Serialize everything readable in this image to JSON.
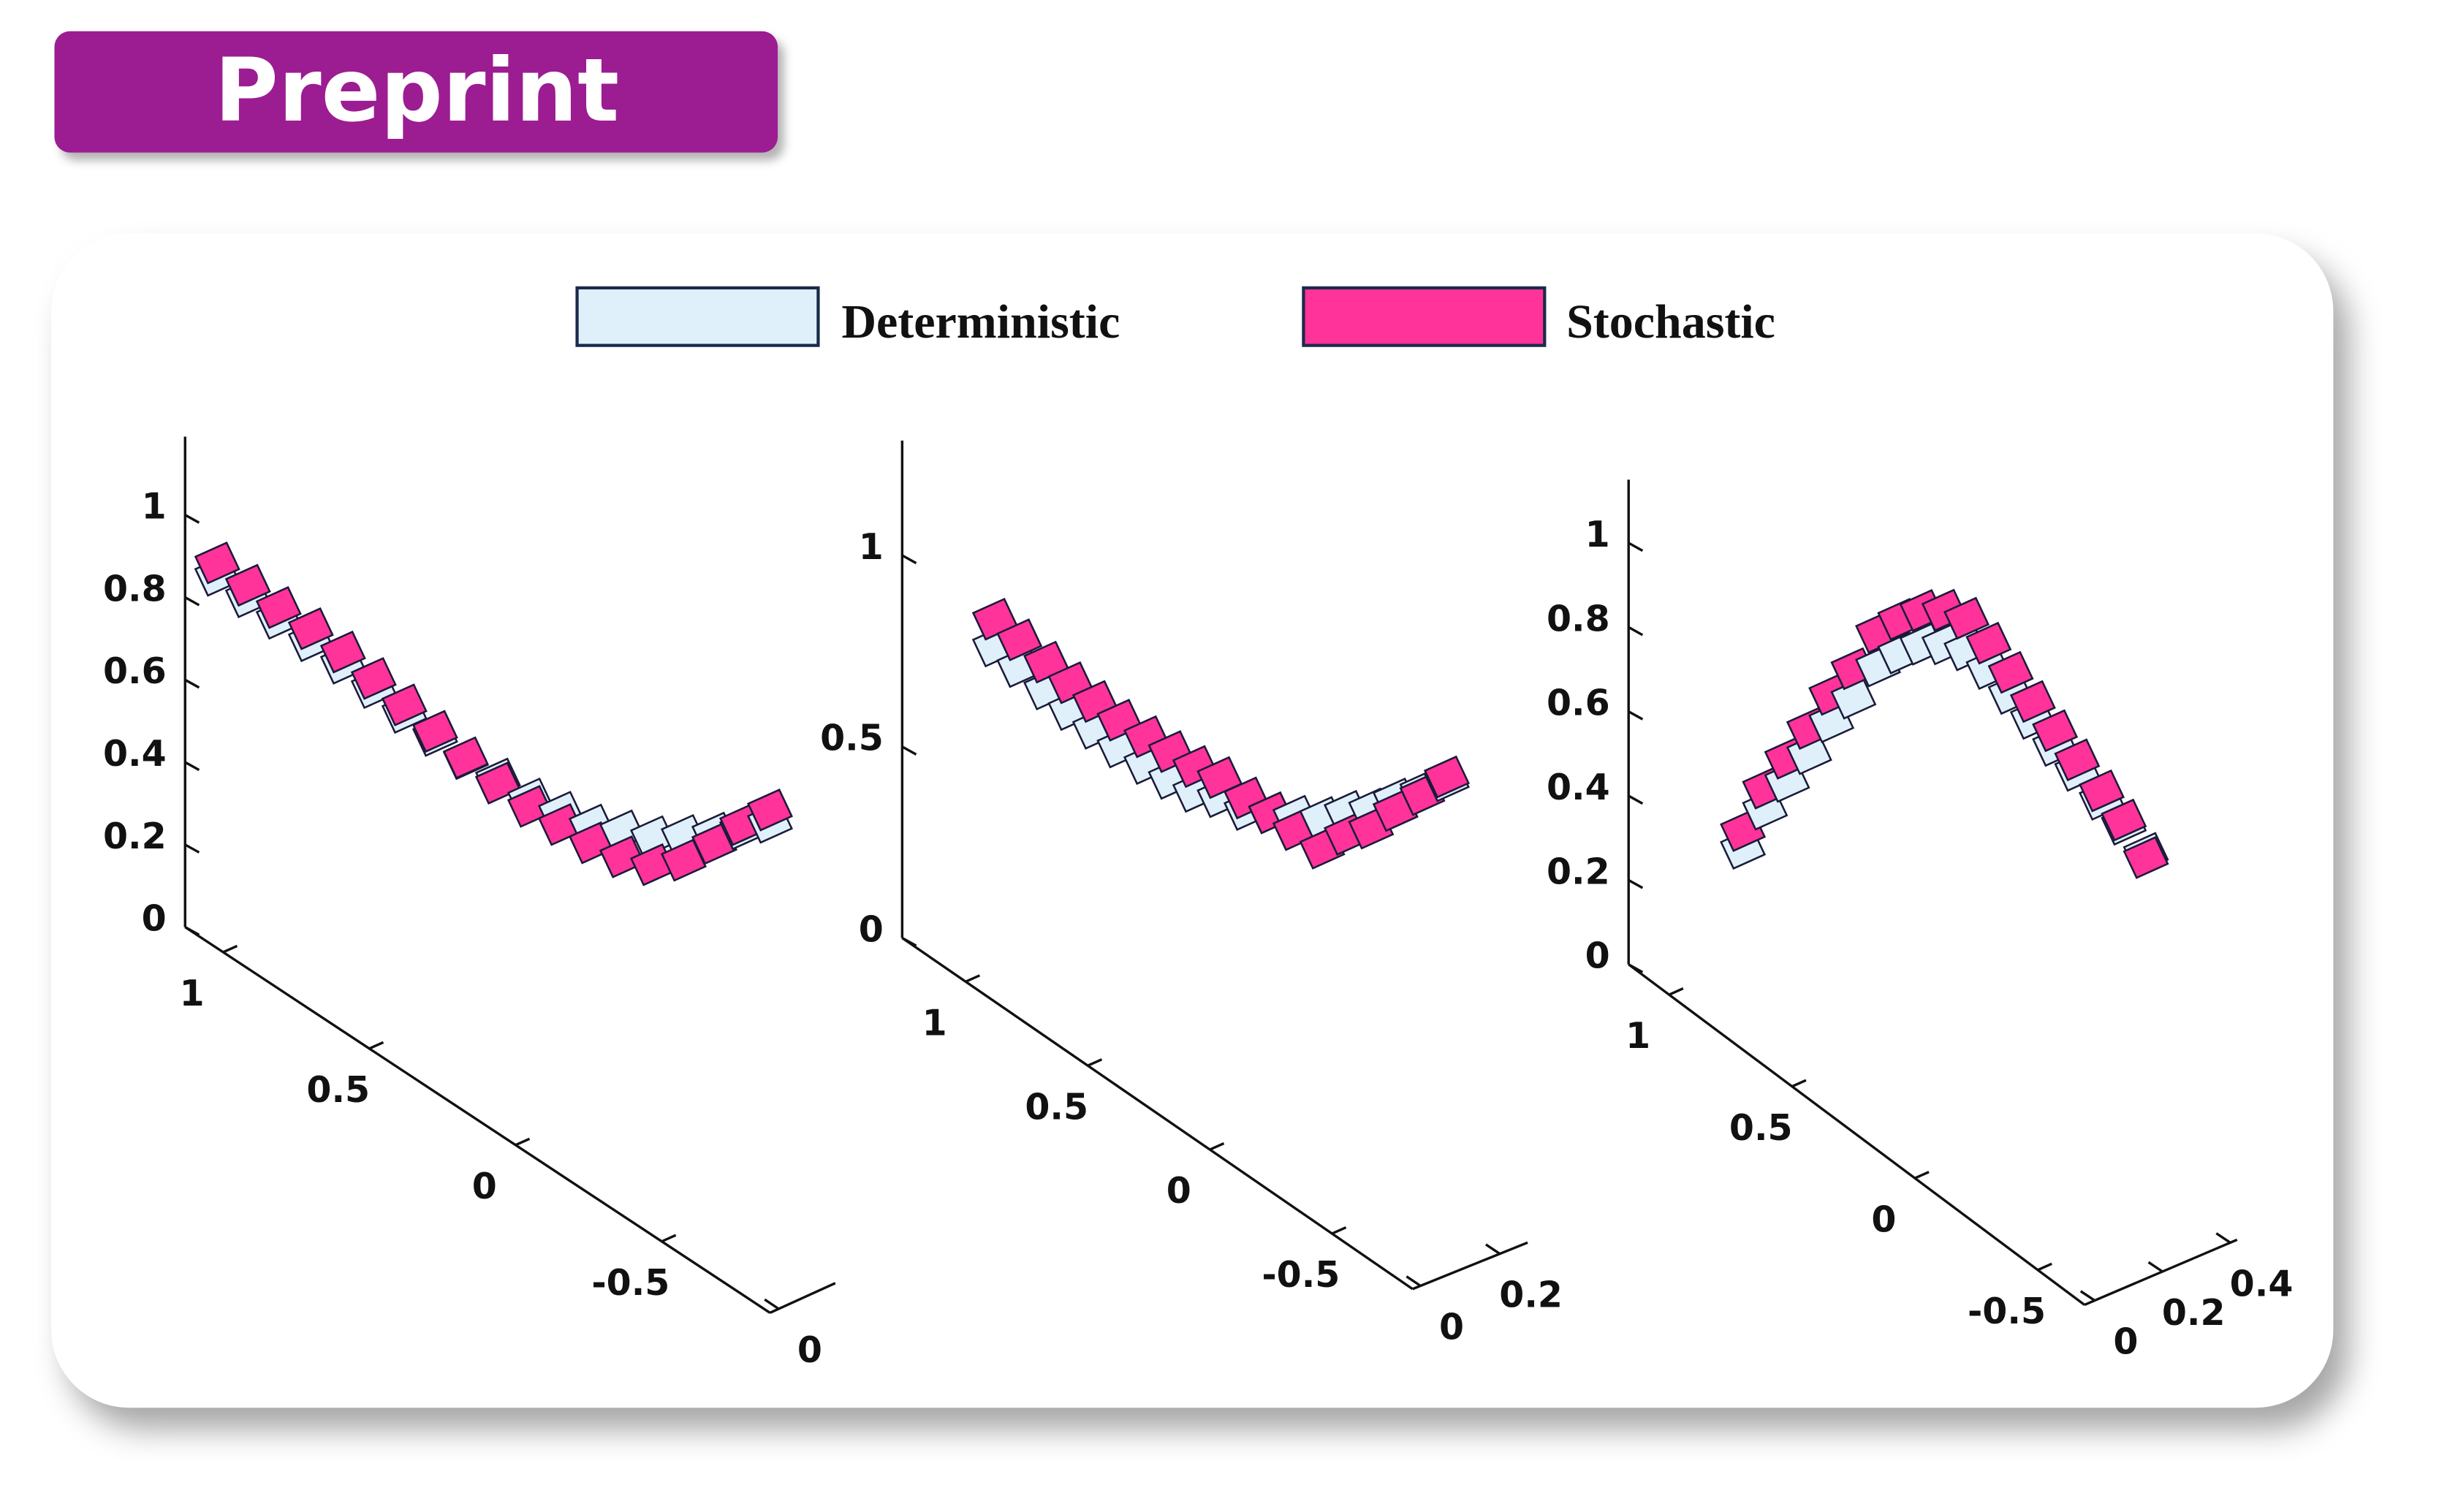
{
  "badge": "Preprint",
  "chart_data": [
    {
      "type": "scatter3d",
      "xlim": [
        -0.87,
        1.13
      ],
      "xticks": [
        -0.5,
        0,
        0.5,
        1
      ],
      "ylim": [
        -0.02,
        0.13
      ],
      "yticks": [
        0
      ],
      "zlim": [
        0,
        1.19
      ],
      "zticks": [
        0,
        0.2,
        0.4,
        0.6,
        0.8,
        1
      ],
      "x": [
        1.02,
        0.915,
        0.81,
        0.7,
        0.59,
        0.485,
        0.38,
        0.275,
        0.17,
        0.06,
        -0.05,
        -0.155,
        -0.26,
        -0.365,
        -0.47,
        -0.575,
        -0.68,
        -0.775,
        -0.87
      ],
      "series": [
        {
          "name": "Deterministic",
          "color": "#dff0fa",
          "values": [
            0.905,
            0.902,
            0.899,
            0.896,
            0.893,
            0.883,
            0.872,
            0.865,
            0.858,
            0.86,
            0.863,
            0.88,
            0.898,
            0.933,
            0.968,
            1.02,
            1.075,
            1.13,
            1.19
          ]
        },
        {
          "name": "Stochastic",
          "color": "#ff3399",
          "values": [
            0.935,
            0.93,
            0.925,
            0.925,
            0.92,
            0.905,
            0.89,
            0.875,
            0.86,
            0.85,
            0.845,
            0.85,
            0.855,
            0.87,
            0.9,
            0.96,
            1.05,
            1.14,
            1.22
          ]
        }
      ]
    },
    {
      "type": "scatter3d",
      "xlim": [
        -0.83,
        1.26
      ],
      "xticks": [
        -0.5,
        0,
        0.5,
        1
      ],
      "ylim": [
        -0.02,
        0.27
      ],
      "yticks": [
        0,
        0.2
      ],
      "zlim": [
        0,
        1.3
      ],
      "zticks": [
        0,
        0.5,
        1
      ],
      "x": [
        0.88,
        0.78,
        0.67,
        0.57,
        0.47,
        0.37,
        0.26,
        0.16,
        0.06,
        -0.04,
        -0.15,
        -0.25,
        -0.35,
        -0.46,
        -0.56,
        -0.66,
        -0.76,
        -0.87,
        -0.97
      ],
      "series": [
        {
          "color": "#dff0fa",
          "values": [
            0.93,
            0.92,
            0.91,
            0.9,
            0.895,
            0.89,
            0.895,
            0.9,
            0.91,
            0.94,
            0.955,
            0.99,
            1.025,
            1.07,
            1.13,
            1.18,
            1.25,
            1.32,
            1.39
          ]
        },
        {
          "color": "#ff3399",
          "values": [
            1.0,
            0.99,
            0.98,
            0.97,
            0.965,
            0.96,
            0.965,
            0.97,
            0.975,
            0.99,
            0.985,
            0.99,
            0.99,
            0.99,
            1.07,
            1.13,
            1.22,
            1.31,
            1.4
          ]
        }
      ]
    },
    {
      "type": "scatter3d",
      "xlim": [
        -0.69,
        1.165
      ],
      "xticks": [
        -0.5,
        0,
        0.5,
        1
      ],
      "ylim": [
        -0.03,
        0.42
      ],
      "yticks": [
        0,
        0.2,
        0.4
      ],
      "zlim": [
        0,
        1.15
      ],
      "zticks": [
        0,
        0.2,
        0.4,
        0.6,
        0.8,
        1
      ],
      "x": [
        0.7,
        0.61,
        0.52,
        0.43,
        0.34,
        0.25,
        0.15,
        0.06,
        -0.03,
        -0.12,
        -0.21,
        -0.3,
        -0.39,
        -0.48,
        -0.57,
        -0.66,
        -0.76,
        -0.85,
        -0.94
      ],
      "series": [
        {
          "color": "#dff0fa",
          "values": [
            0.478,
            0.61,
            0.715,
            0.82,
            0.935,
            1.03,
            1.15,
            1.22,
            1.28,
            1.32,
            1.345,
            1.34,
            1.32,
            1.3,
            1.275,
            1.255,
            1.23,
            1.21,
            1.18
          ]
        },
        {
          "color": "#ff3399",
          "values": [
            0.52,
            0.66,
            0.77,
            0.88,
            1.0,
            1.1,
            1.23,
            1.3,
            1.36,
            1.4,
            1.42,
            1.4,
            1.37,
            1.34,
            1.31,
            1.28,
            1.25,
            1.22,
            1.17
          ]
        }
      ]
    }
  ]
}
